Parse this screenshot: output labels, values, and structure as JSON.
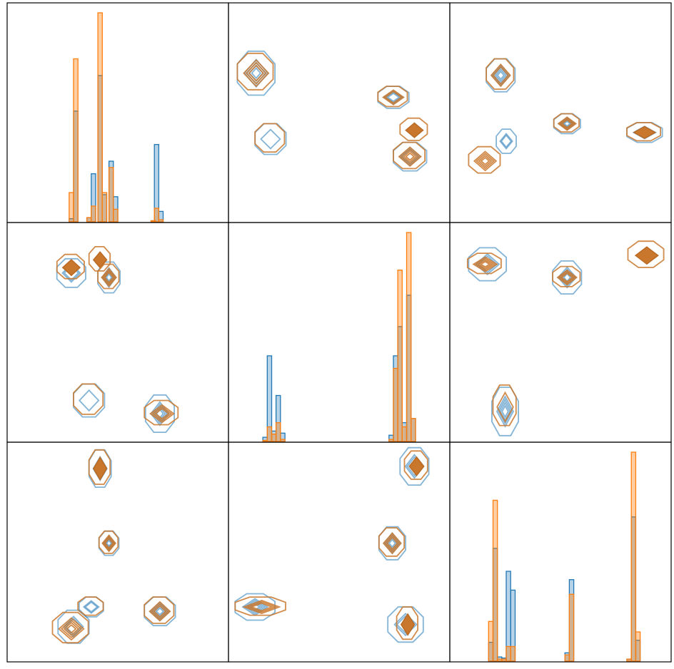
{
  "chart_data": {
    "type": "pairplot",
    "grid": false,
    "series": [
      {
        "name": "",
        "color": "#1f77b4"
      },
      {
        "name": "",
        "color": "#ff7f0e"
      }
    ],
    "xlim": [
      0,
      10
    ],
    "ylim": [
      0,
      10
    ],
    "panels": [
      {
        "row": 0,
        "col": 0,
        "type": "histogram",
        "ymax": 10,
        "series": [
          {
            "bins": [
              [
                2.8,
                0.15
              ],
              [
                3.0,
                5.3
              ],
              [
                3.6,
                0.2
              ],
              [
                3.8,
                2.3
              ],
              [
                4.1,
                7.0
              ],
              [
                4.3,
                1.3
              ],
              [
                4.6,
                2.9
              ],
              [
                4.8,
                1.2
              ],
              [
                6.5,
                0.05
              ],
              [
                6.65,
                3.7
              ],
              [
                6.85,
                0.5
              ]
            ]
          },
          {
            "bins": [
              [
                2.8,
                1.4
              ],
              [
                3.0,
                7.8
              ],
              [
                3.6,
                0.2
              ],
              [
                3.8,
                0.75
              ],
              [
                4.1,
                10.0
              ],
              [
                4.3,
                1.4
              ],
              [
                4.6,
                2.6
              ],
              [
                4.8,
                0.6
              ],
              [
                6.5,
                0.05
              ],
              [
                6.65,
                0.65
              ],
              [
                6.85,
                0.1
              ]
            ]
          }
        ]
      },
      {
        "row": 0,
        "col": 1,
        "type": "kde",
        "series": [
          {
            "clusters": [
              {
                "x": 1.25,
                "y": 6.8,
                "w": 0.85,
                "h": 1.0,
                "levels": 5
              },
              {
                "x": 1.9,
                "y": 3.8,
                "w": 0.7,
                "h": 0.7,
                "levels": 2
              },
              {
                "x": 7.45,
                "y": 5.7,
                "w": 0.7,
                "h": 0.5,
                "levels": 4
              },
              {
                "x": 8.2,
                "y": 3.0,
                "w": 0.75,
                "h": 0.65,
                "levels": 3
              }
            ]
          },
          {
            "clusters": [
              {
                "x": 1.25,
                "y": 6.8,
                "w": 0.85,
                "h": 0.9,
                "levels": 4
              },
              {
                "x": 1.9,
                "y": 3.8,
                "w": 0.7,
                "h": 0.7,
                "levels": 1
              },
              {
                "x": 7.45,
                "y": 5.7,
                "w": 0.7,
                "h": 0.5,
                "levels": 3
              },
              {
                "x": 8.4,
                "y": 4.2,
                "w": 0.65,
                "h": 0.55,
                "levels": 6
              },
              {
                "x": 8.2,
                "y": 3.0,
                "w": 0.75,
                "h": 0.65,
                "levels": 5
              }
            ]
          }
        ]
      },
      {
        "row": 0,
        "col": 2,
        "type": "kde",
        "series": [
          {
            "clusters": [
              {
                "x": 2.3,
                "y": 6.7,
                "w": 0.65,
                "h": 0.75,
                "levels": 5
              },
              {
                "x": 2.55,
                "y": 3.7,
                "w": 0.45,
                "h": 0.55,
                "levels": 3
              },
              {
                "x": 5.3,
                "y": 4.5,
                "w": 0.6,
                "h": 0.45,
                "levels": 5
              },
              {
                "x": 8.8,
                "y": 4.1,
                "w": 0.8,
                "h": 0.45,
                "levels": 4
              }
            ]
          },
          {
            "clusters": [
              {
                "x": 2.3,
                "y": 6.7,
                "w": 0.65,
                "h": 0.75,
                "levels": 3
              },
              {
                "x": 1.6,
                "y": 2.8,
                "w": 0.75,
                "h": 0.65,
                "levels": 5
              },
              {
                "x": 5.3,
                "y": 4.5,
                "w": 0.6,
                "h": 0.45,
                "levels": 4
              },
              {
                "x": 8.8,
                "y": 4.1,
                "w": 0.8,
                "h": 0.45,
                "levels": 6
              }
            ]
          }
        ]
      },
      {
        "row": 1,
        "col": 0,
        "type": "kde",
        "series": [
          {
            "clusters": [
              {
                "x": 2.9,
                "y": 7.7,
                "w": 0.65,
                "h": 0.65,
                "levels": 3
              },
              {
                "x": 4.6,
                "y": 7.5,
                "w": 0.5,
                "h": 0.7,
                "levels": 5
              },
              {
                "x": 3.7,
                "y": 1.9,
                "w": 0.7,
                "h": 0.75,
                "levels": 2
              },
              {
                "x": 6.9,
                "y": 1.3,
                "w": 0.65,
                "h": 0.85,
                "levels": 5
              }
            ]
          },
          {
            "clusters": [
              {
                "x": 2.9,
                "y": 7.95,
                "w": 0.65,
                "h": 0.6,
                "levels": 6
              },
              {
                "x": 4.2,
                "y": 8.3,
                "w": 0.5,
                "h": 0.6,
                "levels": 6
              },
              {
                "x": 4.6,
                "y": 7.5,
                "w": 0.5,
                "h": 0.6,
                "levels": 4
              },
              {
                "x": 3.7,
                "y": 1.9,
                "w": 0.7,
                "h": 0.75,
                "levels": 1
              },
              {
                "x": 7.0,
                "y": 1.3,
                "w": 0.8,
                "h": 0.6,
                "levels": 4
              }
            ]
          }
        ]
      },
      {
        "row": 1,
        "col": 1,
        "type": "histogram",
        "ymax": 10,
        "series": [
          {
            "bins": [
              [
                1.55,
                0.2
              ],
              [
                1.75,
                4.1
              ],
              [
                1.95,
                0.5
              ],
              [
                2.15,
                2.2
              ],
              [
                2.35,
                0.4
              ],
              [
                7.25,
                0.3
              ],
              [
                7.45,
                4.1
              ],
              [
                7.65,
                5.5
              ],
              [
                7.85,
                0.9
              ],
              [
                8.05,
                7.0
              ],
              [
                8.25,
                1.1
              ]
            ]
          },
          {
            "bins": [
              [
                1.55,
                0.05
              ],
              [
                1.75,
                0.7
              ],
              [
                1.95,
                0.35
              ],
              [
                2.15,
                0.9
              ],
              [
                2.35,
                0.1
              ],
              [
                7.25,
                0.1
              ],
              [
                7.45,
                3.5
              ],
              [
                7.65,
                8.2
              ],
              [
                7.85,
                0.7
              ],
              [
                8.05,
                10.0
              ],
              [
                8.25,
                1.1
              ]
            ]
          }
        ]
      },
      {
        "row": 1,
        "col": 2,
        "type": "kde",
        "series": [
          {
            "clusters": [
              {
                "x": 1.7,
                "y": 8.1,
                "w": 0.85,
                "h": 0.75,
                "levels": 3
              },
              {
                "x": 5.3,
                "y": 7.5,
                "w": 0.65,
                "h": 0.75,
                "levels": 5
              },
              {
                "x": 2.5,
                "y": 1.4,
                "w": 0.6,
                "h": 1.1,
                "levels": 5
              }
            ]
          },
          {
            "clusters": [
              {
                "x": 1.6,
                "y": 8.1,
                "w": 0.8,
                "h": 0.5,
                "levels": 5
              },
              {
                "x": 5.3,
                "y": 7.5,
                "w": 0.65,
                "h": 0.5,
                "levels": 4
              },
              {
                "x": 8.9,
                "y": 8.5,
                "w": 0.85,
                "h": 0.65,
                "levels": 6
              },
              {
                "x": 2.5,
                "y": 1.6,
                "w": 0.55,
                "h": 1.0,
                "levels": 2
              }
            ]
          }
        ]
      },
      {
        "row": 2,
        "col": 0,
        "type": "kde",
        "series": [
          {
            "clusters": [
              {
                "x": 4.2,
                "y": 8.8,
                "w": 0.5,
                "h": 0.85,
                "levels": 3
              },
              {
                "x": 4.6,
                "y": 5.4,
                "w": 0.45,
                "h": 0.55,
                "levels": 5
              },
              {
                "x": 3.8,
                "y": 2.5,
                "w": 0.55,
                "h": 0.45,
                "levels": 3
              },
              {
                "x": 3.0,
                "y": 1.6,
                "w": 0.7,
                "h": 0.75,
                "levels": 3
              },
              {
                "x": 6.9,
                "y": 2.3,
                "w": 0.7,
                "h": 0.65,
                "levels": 5
              }
            ]
          },
          {
            "clusters": [
              {
                "x": 4.2,
                "y": 8.8,
                "w": 0.5,
                "h": 0.85,
                "levels": 6
              },
              {
                "x": 4.6,
                "y": 5.4,
                "w": 0.45,
                "h": 0.55,
                "levels": 4
              },
              {
                "x": 3.8,
                "y": 2.5,
                "w": 0.6,
                "h": 0.45,
                "levels": 1
              },
              {
                "x": 2.9,
                "y": 1.5,
                "w": 0.85,
                "h": 0.75,
                "levels": 5
              },
              {
                "x": 6.9,
                "y": 2.3,
                "w": 0.7,
                "h": 0.65,
                "levels": 4
              }
            ]
          }
        ]
      },
      {
        "row": 2,
        "col": 1,
        "type": "kde",
        "series": [
          {
            "clusters": [
              {
                "x": 8.4,
                "y": 8.9,
                "w": 0.65,
                "h": 0.85,
                "levels": 3
              },
              {
                "x": 7.4,
                "y": 5.4,
                "w": 0.6,
                "h": 0.75,
                "levels": 5
              },
              {
                "x": 1.2,
                "y": 2.5,
                "w": 0.9,
                "h": 0.6,
                "levels": 5
              },
              {
                "x": 8.0,
                "y": 1.7,
                "w": 0.8,
                "h": 0.8,
                "levels": 3
              }
            ]
          },
          {
            "clusters": [
              {
                "x": 8.5,
                "y": 8.9,
                "w": 0.55,
                "h": 0.7,
                "levels": 6
              },
              {
                "x": 7.4,
                "y": 5.4,
                "w": 0.6,
                "h": 0.7,
                "levels": 4
              },
              {
                "x": 1.5,
                "y": 2.5,
                "w": 1.2,
                "h": 0.45,
                "levels": 4
              },
              {
                "x": 8.1,
                "y": 1.7,
                "w": 0.5,
                "h": 0.8,
                "levels": 6
              }
            ]
          }
        ]
      },
      {
        "row": 2,
        "col": 2,
        "type": "histogram",
        "ymax": 10,
        "series": [
          {
            "bins": [
              [
                1.75,
                0.9
              ],
              [
                1.95,
                5.4
              ],
              [
                2.15,
                0.2
              ],
              [
                2.35,
                0.15
              ],
              [
                2.55,
                4.3
              ],
              [
                2.75,
                3.4
              ],
              [
                5.2,
                0.4
              ],
              [
                5.4,
                3.9
              ],
              [
                8.0,
                0.1
              ],
              [
                8.2,
                6.9
              ],
              [
                8.4,
                1.0
              ]
            ]
          },
          {
            "bins": [
              [
                1.75,
                1.9
              ],
              [
                1.95,
                7.7
              ],
              [
                2.15,
                0.1
              ],
              [
                2.35,
                0.1
              ],
              [
                2.55,
                0.7
              ],
              [
                2.75,
                0.7
              ],
              [
                5.2,
                0.3
              ],
              [
                5.4,
                3.2
              ],
              [
                8.0,
                0.1
              ],
              [
                8.2,
                10.0
              ],
              [
                8.4,
                1.4
              ]
            ]
          }
        ]
      }
    ]
  }
}
